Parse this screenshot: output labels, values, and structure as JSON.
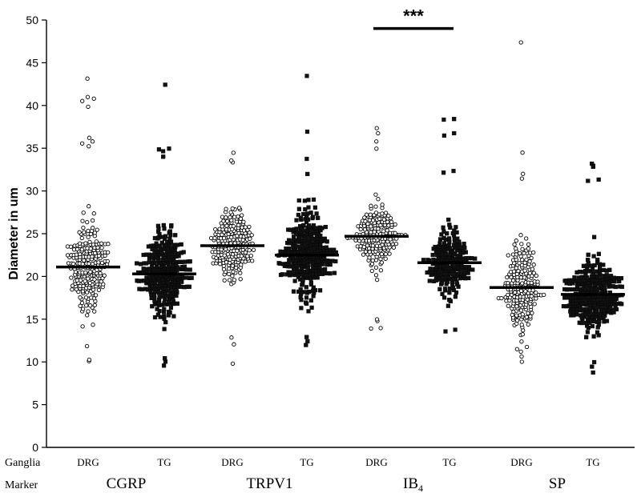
{
  "chart_data": {
    "type": "scatter",
    "subtype": "dot-plot with median bars",
    "title": "",
    "xlabel": "",
    "ylabel": "Diameter in um",
    "ylim": [
      0,
      50
    ],
    "yticks": [
      0,
      5,
      10,
      15,
      20,
      25,
      30,
      35,
      40,
      45,
      50
    ],
    "grid": false,
    "row_labels": {
      "ganglia": "Ganglia",
      "marker": "Marker"
    },
    "markers": [
      {
        "name": "CGRP",
        "sub": ""
      },
      {
        "name": "TRPV1",
        "sub": ""
      },
      {
        "name": "IB",
        "sub": "4"
      },
      {
        "name": "SP",
        "sub": ""
      }
    ],
    "significance": {
      "label": "***",
      "between_groups": [
        "IB4 DRG",
        "IB4 TG"
      ],
      "y": 49
    },
    "groups": [
      {
        "ganglia": "DRG",
        "marker": "CGRP",
        "symbol": "open-circle",
        "median": 21.1,
        "count": 230,
        "min": 10.1,
        "max": 43.2,
        "outliers": [
          43.2,
          41.0,
          40.8,
          40.5,
          39.8,
          36.2,
          35.8,
          35.5,
          35.2,
          10.1,
          10.3,
          11.8
        ]
      },
      {
        "ganglia": "TG",
        "marker": "CGRP",
        "symbol": "filled-square",
        "median": 20.3,
        "count": 280,
        "min": 9.6,
        "max": 42.4,
        "outliers": [
          42.4,
          35.0,
          34.9,
          34.6,
          34.0,
          9.6,
          10.0,
          10.4
        ]
      },
      {
        "ganglia": "DRG",
        "marker": "TRPV1",
        "symbol": "open-circle",
        "median": 23.6,
        "count": 210,
        "min": 9.8,
        "max": 34.5,
        "outliers": [
          34.5,
          33.6,
          33.3,
          9.8,
          12.1,
          12.8
        ]
      },
      {
        "ganglia": "TG",
        "marker": "TRPV1",
        "symbol": "filled-square",
        "median": 22.5,
        "count": 300,
        "min": 12.0,
        "max": 43.4,
        "outliers": [
          43.4,
          36.9,
          33.8,
          32.0,
          12.0,
          12.4,
          12.9
        ]
      },
      {
        "ganglia": "DRG",
        "marker": "IB4",
        "symbol": "open-circle",
        "median": 24.7,
        "count": 190,
        "min": 13.9,
        "max": 37.3,
        "outliers": [
          37.3,
          36.8,
          35.8,
          35.0,
          13.9,
          14.0,
          14.8,
          15.0
        ]
      },
      {
        "ganglia": "TG",
        "marker": "IB4",
        "symbol": "filled-square",
        "median": 21.6,
        "count": 200,
        "min": 13.6,
        "max": 38.4,
        "outliers": [
          38.4,
          38.3,
          36.7,
          36.5,
          32.3,
          32.2,
          13.6,
          13.8
        ]
      },
      {
        "ganglia": "DRG",
        "marker": "SP",
        "symbol": "open-circle",
        "median": 18.7,
        "count": 200,
        "min": 10.0,
        "max": 47.4,
        "outliers": [
          47.4,
          34.5,
          32.0,
          31.4,
          10.0,
          10.6,
          11.2
        ]
      },
      {
        "ganglia": "TG",
        "marker": "SP",
        "symbol": "filled-square",
        "median": 17.9,
        "count": 300,
        "min": 8.8,
        "max": 33.2,
        "outliers": [
          33.2,
          33.0,
          32.8,
          31.3,
          31.2,
          8.8,
          9.5,
          10.0
        ]
      }
    ]
  }
}
